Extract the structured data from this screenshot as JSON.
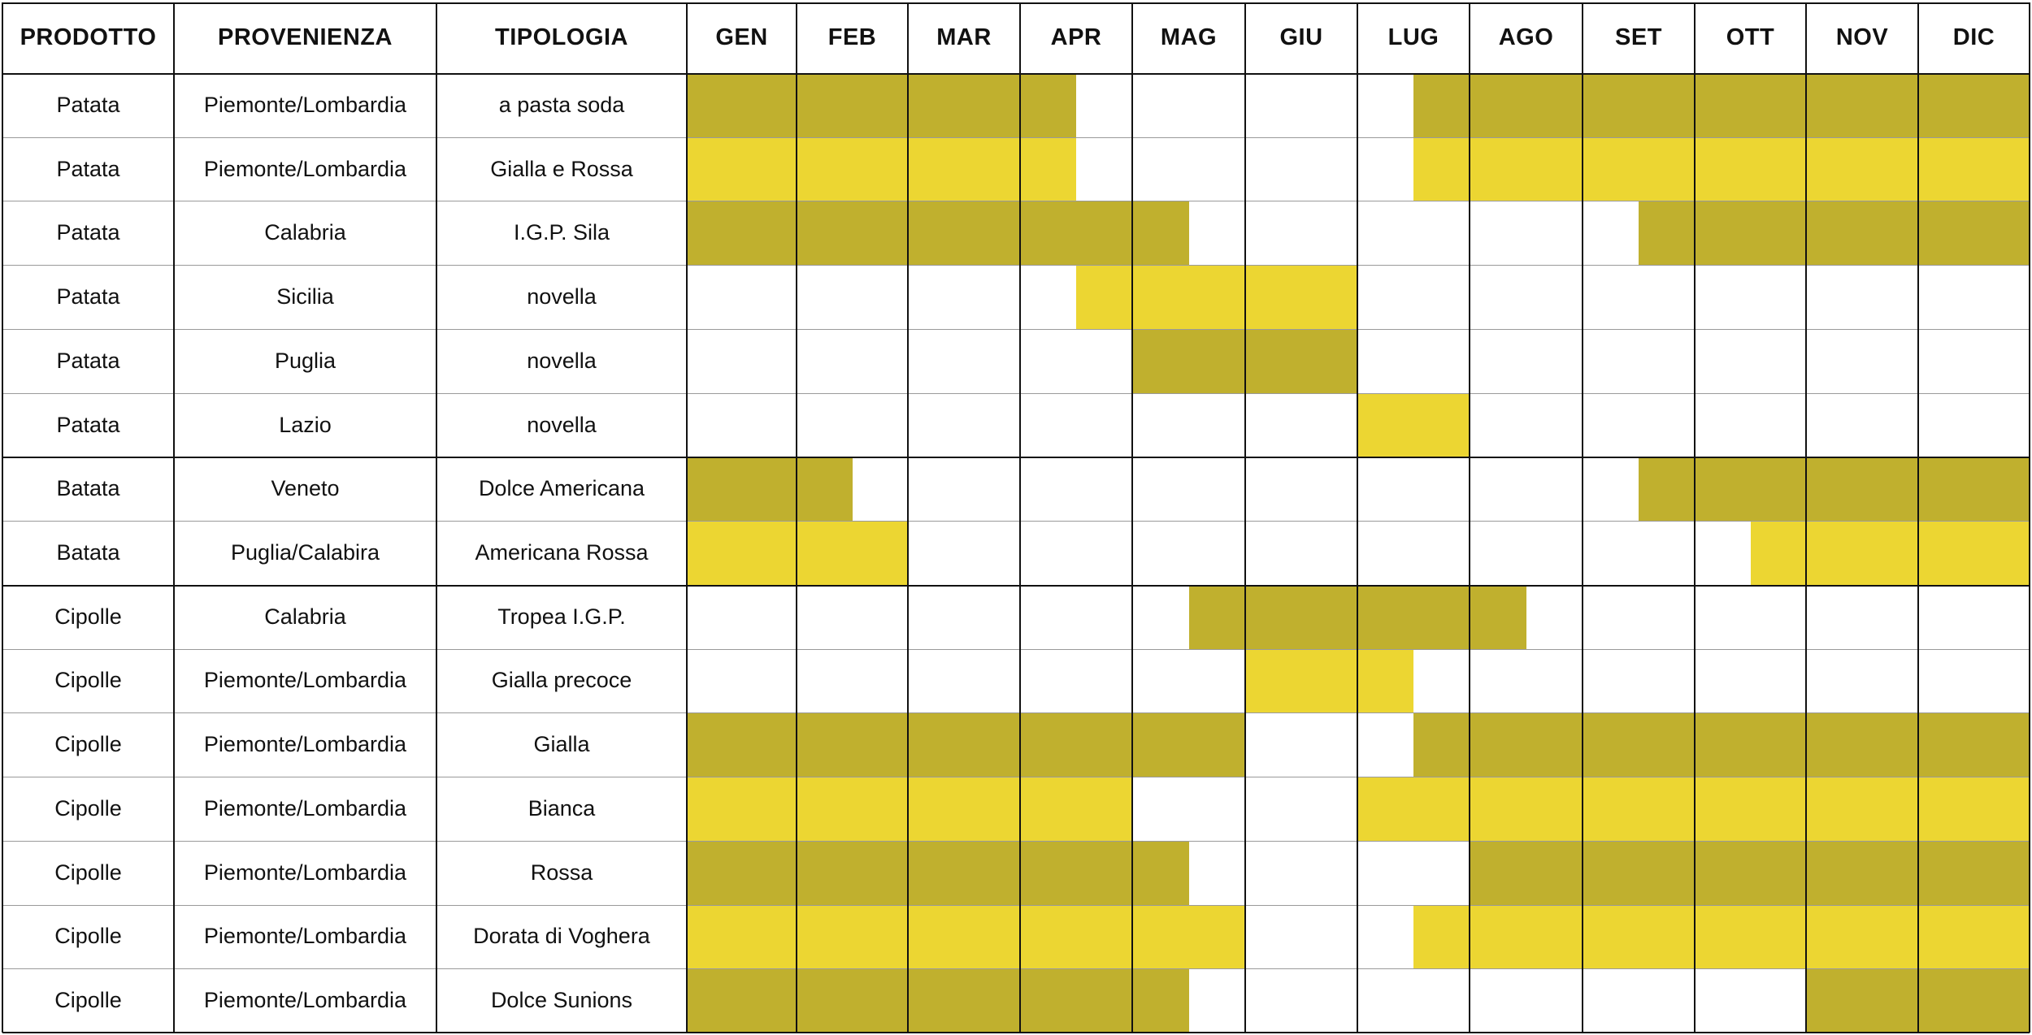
{
  "colors": {
    "dark": "#c0b02e",
    "light": "#ecd632"
  },
  "headers": [
    "PRODOTTO",
    "PROVENIENZA",
    "TIPOLOGIA",
    "GEN",
    "FEB",
    "MAR",
    "APR",
    "MAG",
    "GIU",
    "LUG",
    "AGO",
    "SET",
    "OTT",
    "NOV",
    "DIC"
  ],
  "rows": [
    {
      "prodotto": "Patata",
      "provenienza": "Piemonte/Lombardia",
      "tipologia": "a pasta soda",
      "color": "dark",
      "ranges": [
        [
          1,
          4.5
        ],
        [
          7.5,
          13
        ]
      ]
    },
    {
      "prodotto": "Patata",
      "provenienza": "Piemonte/Lombardia",
      "tipologia": "Gialla e Rossa",
      "color": "light",
      "ranges": [
        [
          1,
          4.5
        ],
        [
          7.5,
          13
        ]
      ]
    },
    {
      "prodotto": "Patata",
      "provenienza": "Calabria",
      "tipologia": "I.G.P. Sila",
      "color": "dark",
      "ranges": [
        [
          1,
          5.5
        ],
        [
          9.5,
          13
        ]
      ]
    },
    {
      "prodotto": "Patata",
      "provenienza": "Sicilia",
      "tipologia": "novella",
      "color": "light",
      "ranges": [
        [
          4.5,
          7
        ]
      ]
    },
    {
      "prodotto": "Patata",
      "provenienza": "Puglia",
      "tipologia": "novella",
      "color": "dark",
      "ranges": [
        [
          5,
          7
        ]
      ]
    },
    {
      "prodotto": "Patata",
      "provenienza": "Lazio",
      "tipologia": "novella",
      "color": "light",
      "ranges": [
        [
          7,
          8
        ]
      ]
    },
    {
      "prodotto": "Batata",
      "provenienza": "Veneto",
      "tipologia": "Dolce Americana",
      "color": "dark",
      "ranges": [
        [
          1,
          2.5
        ],
        [
          9.5,
          13
        ]
      ]
    },
    {
      "prodotto": "Batata",
      "provenienza": "Puglia/Calabira",
      "tipologia": "Americana Rossa",
      "color": "light",
      "ranges": [
        [
          1,
          3
        ],
        [
          10.5,
          13
        ]
      ]
    },
    {
      "prodotto": "Cipolle",
      "provenienza": "Calabria",
      "tipologia": "Tropea I.G.P.",
      "color": "dark",
      "ranges": [
        [
          5.5,
          8.5
        ]
      ]
    },
    {
      "prodotto": "Cipolle",
      "provenienza": "Piemonte/Lombardia",
      "tipologia": "Gialla precoce",
      "color": "light",
      "ranges": [
        [
          6,
          7.5
        ]
      ]
    },
    {
      "prodotto": "Cipolle",
      "provenienza": "Piemonte/Lombardia",
      "tipologia": "Gialla",
      "color": "dark",
      "ranges": [
        [
          1,
          6
        ],
        [
          7.5,
          13
        ]
      ]
    },
    {
      "prodotto": "Cipolle",
      "provenienza": "Piemonte/Lombardia",
      "tipologia": "Bianca",
      "color": "light",
      "ranges": [
        [
          1,
          5
        ],
        [
          7,
          13
        ]
      ]
    },
    {
      "prodotto": "Cipolle",
      "provenienza": "Piemonte/Lombardia",
      "tipologia": "Rossa",
      "color": "dark",
      "ranges": [
        [
          1,
          5.5
        ],
        [
          8,
          13
        ]
      ]
    },
    {
      "prodotto": "Cipolle",
      "provenienza": "Piemonte/Lombardia",
      "tipologia": "Dorata di Voghera",
      "color": "light",
      "ranges": [
        [
          1,
          6
        ],
        [
          7.5,
          13
        ]
      ]
    },
    {
      "prodotto": "Cipolle",
      "provenienza": "Piemonte/Lombardia",
      "tipologia": "Dolce Sunions",
      "color": "dark",
      "ranges": [
        [
          1,
          5.5
        ],
        [
          11,
          13
        ]
      ]
    }
  ],
  "group_breaks": [
    6,
    8
  ]
}
